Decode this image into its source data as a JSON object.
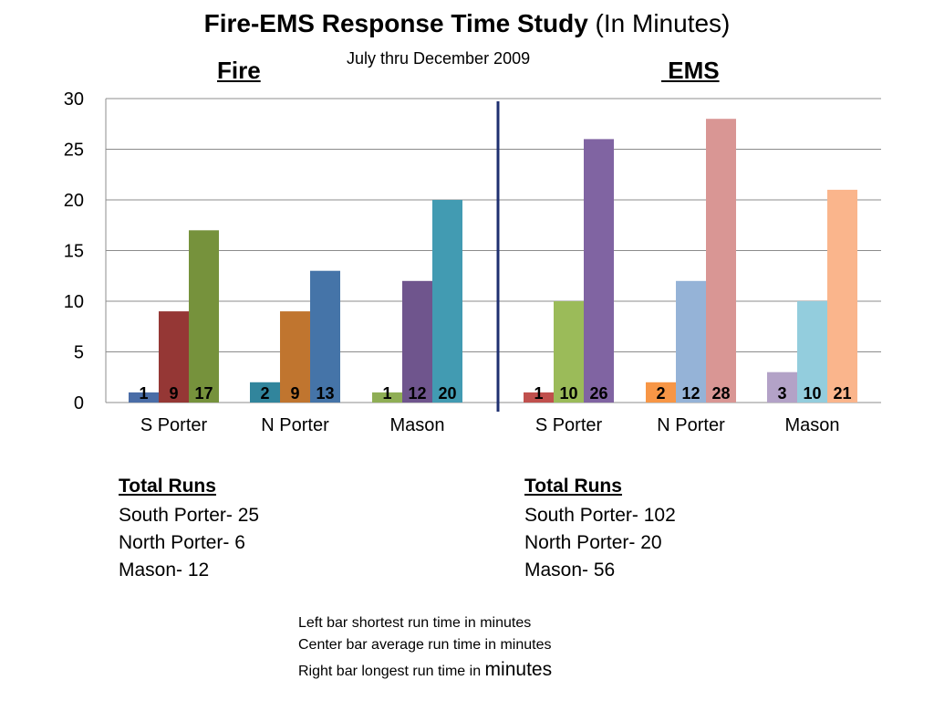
{
  "title": {
    "bold": "Fire-EMS Response Time Study",
    "normal": " (In Minutes)"
  },
  "subtitle": "July thru December 2009",
  "sections": {
    "fire": "Fire",
    "ems": " EMS"
  },
  "chart_data": {
    "type": "bar",
    "ylim": [
      0,
      30
    ],
    "yticks": [
      "0",
      "5",
      "10",
      "15",
      "20",
      "25",
      "30"
    ],
    "grid": true,
    "groups": [
      {
        "section": "Fire",
        "category": "S Porter",
        "values": [
          1,
          9,
          17
        ],
        "labels": [
          "1",
          "9",
          "17"
        ],
        "colors": [
          "#4a6da7",
          "#953735",
          "#76923c"
        ]
      },
      {
        "section": "Fire",
        "category": "N Porter",
        "values": [
          2,
          9,
          13
        ],
        "labels": [
          "2",
          "9",
          "13"
        ],
        "colors": [
          "#31859c",
          "#c0752f",
          "#4574a8"
        ]
      },
      {
        "section": "Fire",
        "category": "Mason",
        "values": [
          1,
          12,
          20
        ],
        "labels": [
          "1",
          "12",
          "20"
        ],
        "colors": [
          "#8fae55",
          "#6f558d",
          "#429bb2"
        ]
      },
      {
        "section": "EMS",
        "category": "S Porter",
        "values": [
          1,
          10,
          26
        ],
        "labels": [
          "1",
          "10",
          "26"
        ],
        "colors": [
          "#c0504d",
          "#9bbb59",
          "#8064a2"
        ]
      },
      {
        "section": "EMS",
        "category": "N Porter",
        "values": [
          2,
          12,
          28
        ],
        "labels": [
          "2",
          "12",
          "28"
        ],
        "colors": [
          "#f79646",
          "#95b3d7",
          "#d99694"
        ]
      },
      {
        "section": "EMS",
        "category": "Mason",
        "values": [
          3,
          10,
          21
        ],
        "labels": [
          "3",
          "10",
          "21"
        ],
        "colors": [
          "#b3a2c7",
          "#93cddd",
          "#fab58c"
        ]
      }
    ]
  },
  "total_runs": {
    "fire": {
      "heading": "Total Runs",
      "lines": [
        "South Porter- 25",
        "North Porter- 6",
        "Mason- 12"
      ]
    },
    "ems": {
      "heading": "Total Runs",
      "lines": [
        "South Porter- 102",
        "North Porter- 20",
        "Mason- 56"
      ]
    }
  },
  "legend_notes": {
    "line1": "Left bar shortest run time in minutes",
    "line2": "Center bar average run time in minutes",
    "line3_a": "Right bar longest run time in ",
    "line3_b": "minutes"
  }
}
